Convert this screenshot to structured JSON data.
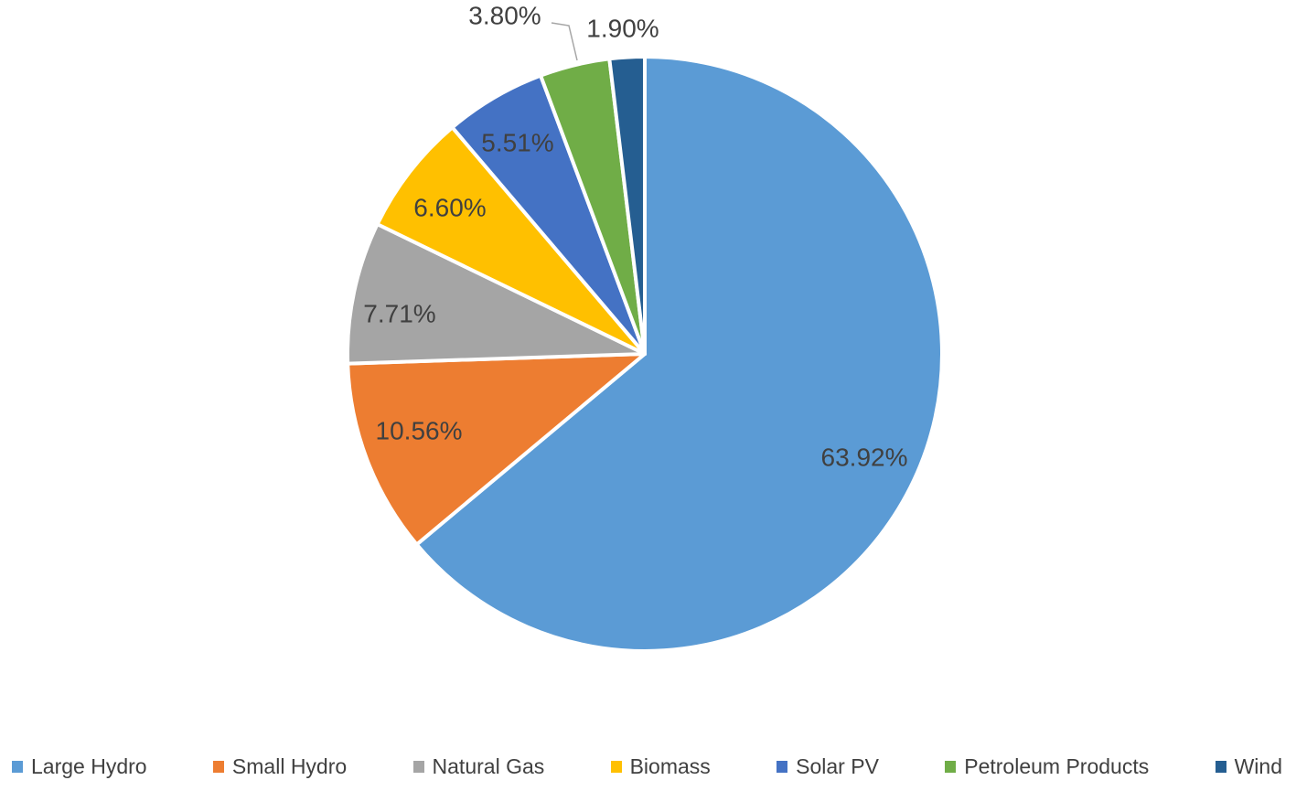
{
  "chart_data": {
    "type": "pie",
    "title": "",
    "categories": [
      "Large Hydro",
      "Small Hydro",
      "Natural Gas",
      "Biomass",
      "Solar PV",
      "Petroleum Products",
      "Wind"
    ],
    "values": [
      63.92,
      10.56,
      7.71,
      6.6,
      5.51,
      3.8,
      1.9
    ],
    "labels": [
      "63.92%",
      "10.56%",
      "7.71%",
      "6.60%",
      "5.51%",
      "3.80%",
      "1.90%"
    ],
    "colors": [
      "#5B9BD5",
      "#ED7D31",
      "#A5A5A5",
      "#FFC000",
      "#4472C4",
      "#70AD47",
      "#255E91"
    ],
    "label_format": "percent_2dp",
    "label_color": "#404040",
    "leader_line_color": "#A6A6A6",
    "slice_border_color": "#FFFFFF",
    "background": "#FFFFFF",
    "start_angle_deg": 0,
    "direction": "clockwise",
    "legend_position": "bottom",
    "grid": false
  }
}
